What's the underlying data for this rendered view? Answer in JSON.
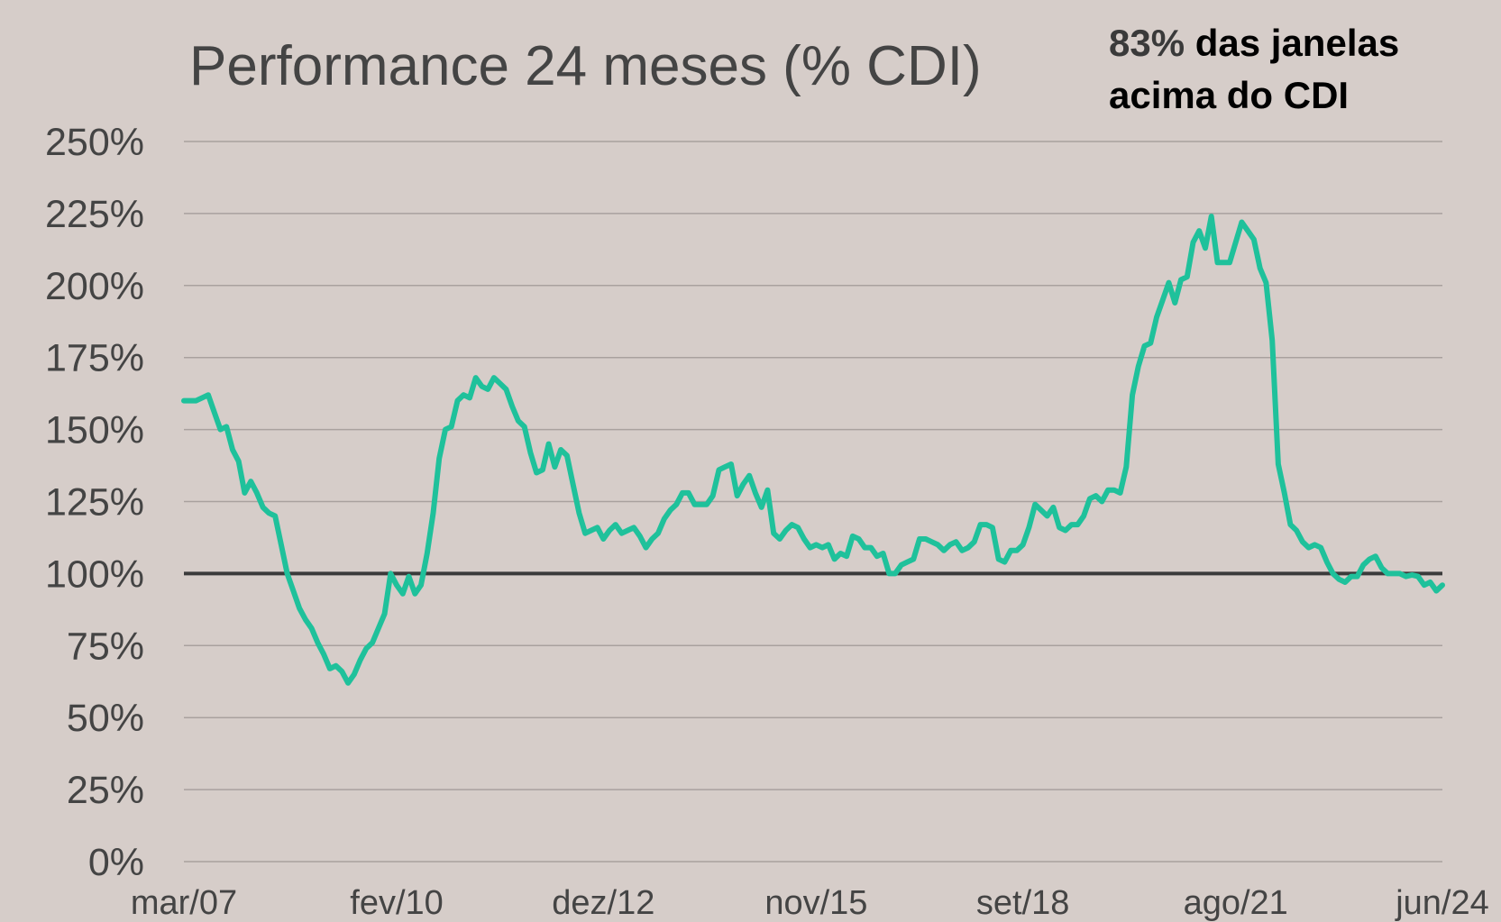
{
  "chart_data": {
    "type": "line",
    "title": "Performance 24 meses (% CDI)",
    "annotation": {
      "highlight": "83%",
      "lines": [
        "das janelas",
        "acima do CDI"
      ],
      "highlight_color": "#3a3a3a",
      "color": "#000000"
    },
    "categories": [
      "mar/07",
      null,
      null,
      null,
      null,
      null,
      null,
      null,
      null,
      null,
      null,
      null,
      null,
      null,
      null,
      null,
      null,
      null,
      null,
      null,
      null,
      null,
      null,
      null,
      null,
      null,
      null,
      null,
      null,
      null,
      null,
      null,
      null,
      null,
      null,
      "fev/10",
      null,
      null,
      null,
      null,
      null,
      null,
      null,
      null,
      null,
      null,
      null,
      null,
      null,
      null,
      null,
      null,
      null,
      null,
      null,
      null,
      null,
      null,
      null,
      null,
      null,
      null,
      null,
      null,
      null,
      null,
      null,
      null,
      null,
      "dez/12",
      null,
      null,
      null,
      null,
      null,
      null,
      null,
      null,
      null,
      null,
      null,
      null,
      null,
      null,
      null,
      null,
      null,
      null,
      null,
      null,
      null,
      null,
      null,
      null,
      null,
      null,
      null,
      null,
      null,
      null,
      null,
      null,
      null,
      null,
      "nov/15",
      null,
      null,
      null,
      null,
      null,
      null,
      null,
      null,
      null,
      null,
      null,
      null,
      null,
      null,
      null,
      null,
      null,
      null,
      null,
      null,
      null,
      null,
      null,
      null,
      null,
      null,
      null,
      null,
      null,
      null,
      null,
      null,
      null,
      "set/18",
      null,
      null,
      null,
      null,
      null,
      null,
      null,
      null,
      null,
      null,
      null,
      null,
      null,
      null,
      null,
      null,
      null,
      null,
      null,
      null,
      null,
      null,
      null,
      null,
      null,
      null,
      null,
      null,
      null,
      null,
      null,
      null,
      null,
      null,
      "ago/21",
      null,
      null,
      null,
      null,
      null,
      null,
      null,
      null,
      null,
      null,
      null,
      null,
      null,
      null,
      null,
      null,
      null,
      null,
      null,
      null,
      null,
      null,
      null,
      null,
      null,
      null,
      null,
      null,
      null,
      null,
      null,
      null,
      null,
      "jun/24"
    ],
    "series": [
      {
        "name": "Performance 24 meses",
        "color": "#1fc19b",
        "values": [
          160,
          160,
          160,
          161,
          162,
          156,
          150,
          151,
          143,
          139,
          128,
          132,
          128,
          123,
          121,
          120,
          110,
          100,
          94,
          88,
          84,
          81,
          76,
          72,
          67,
          68,
          66,
          62,
          65,
          70,
          74,
          76,
          81,
          86,
          100,
          96,
          93,
          99,
          93,
          96,
          107,
          121,
          140,
          150,
          151,
          160,
          162,
          161,
          168,
          165,
          164,
          168,
          166,
          164,
          158,
          153,
          151,
          142,
          135,
          136,
          145,
          137,
          143,
          141,
          131,
          121,
          114,
          115,
          116,
          112,
          115,
          117,
          114,
          115,
          116,
          113,
          109,
          112,
          114,
          119,
          122,
          124,
          128,
          128,
          124,
          124,
          124,
          127,
          136,
          137,
          138,
          127,
          131,
          134,
          128,
          123,
          129,
          114,
          112,
          115,
          117,
          116,
          112,
          109,
          110,
          109,
          110,
          105,
          107,
          106,
          113,
          112,
          109,
          109,
          106,
          107,
          100,
          100,
          103,
          104,
          105,
          112,
          112,
          111,
          110,
          108,
          110,
          111,
          108,
          109,
          111,
          117,
          117,
          116,
          105,
          104,
          108,
          108,
          110,
          116,
          124,
          122,
          120,
          123,
          116,
          115,
          117,
          117,
          120,
          126,
          127,
          125,
          129,
          129,
          128,
          137,
          162,
          172,
          179,
          180,
          189,
          195,
          201,
          194,
          202,
          203,
          215,
          219,
          213,
          224,
          208,
          208,
          208,
          215,
          222,
          219,
          216,
          206,
          201,
          181,
          138,
          128,
          117,
          115,
          111,
          109,
          110,
          109,
          104,
          100,
          98,
          97,
          99,
          99,
          103,
          105,
          106,
          102,
          100,
          100,
          100,
          99,
          99.5,
          99,
          96,
          97,
          94,
          96
        ]
      }
    ],
    "ylim": [
      0,
      250
    ],
    "yticks": [
      {
        "value": 0,
        "label": "0%"
      },
      {
        "value": 25,
        "label": "25%"
      },
      {
        "value": 50,
        "label": "50%"
      },
      {
        "value": 75,
        "label": "75%"
      },
      {
        "value": 100,
        "label": "100%"
      },
      {
        "value": 125,
        "label": "125%"
      },
      {
        "value": 150,
        "label": "150%"
      },
      {
        "value": 175,
        "label": "175%"
      },
      {
        "value": 200,
        "label": "200%"
      },
      {
        "value": 225,
        "label": "225%"
      },
      {
        "value": 250,
        "label": "250%"
      }
    ],
    "grid": true,
    "reference_line": 100,
    "reference_color": "#3b3b3b"
  }
}
